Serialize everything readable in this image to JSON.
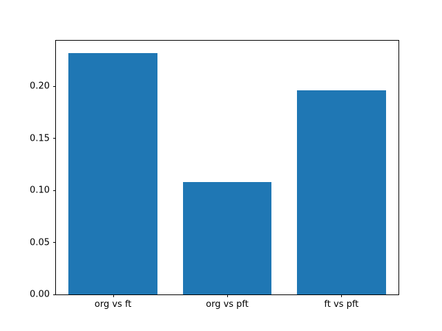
{
  "chart_data": {
    "type": "bar",
    "categories": [
      "org vs ft",
      "org vs pft",
      "ft vs pft"
    ],
    "values": [
      0.232,
      0.108,
      0.196
    ],
    "title": "",
    "xlabel": "",
    "ylabel": "",
    "ylim": [
      0,
      0.244
    ],
    "yticks": [
      0.0,
      0.05,
      0.1,
      0.15,
      0.2
    ],
    "ytick_labels": [
      "0.00",
      "0.05",
      "0.10",
      "0.15",
      "0.20"
    ],
    "bar_color": "#1f77b4",
    "bar_width_fraction": 0.26,
    "grid": false,
    "legend": null
  }
}
